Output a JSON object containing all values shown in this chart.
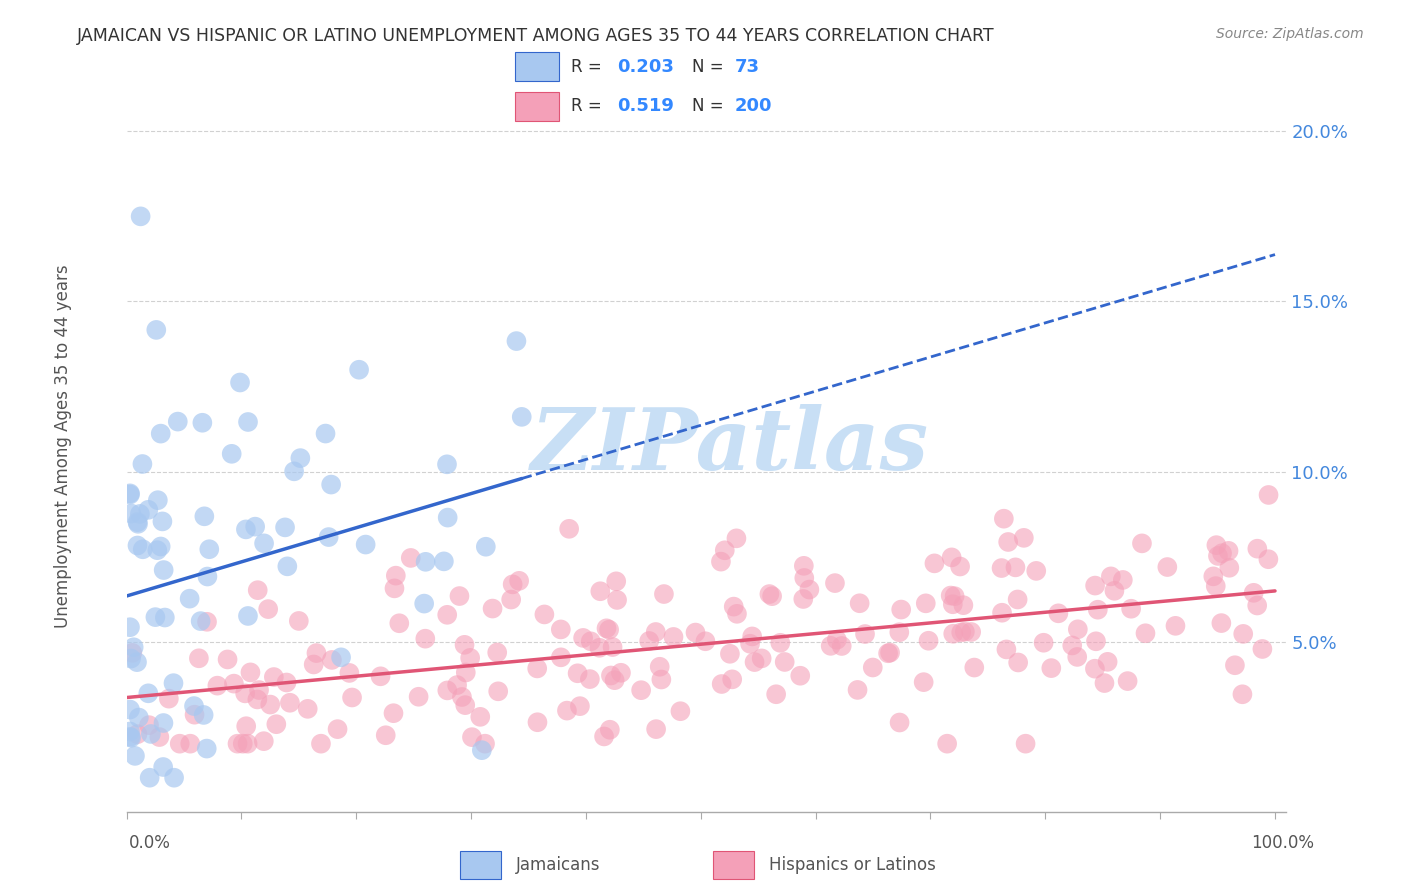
{
  "title": "JAMAICAN VS HISPANIC OR LATINO UNEMPLOYMENT AMONG AGES 35 TO 44 YEARS CORRELATION CHART",
  "source": "Source: ZipAtlas.com",
  "ylabel": "Unemployment Among Ages 35 to 44 years",
  "legend_jamaicans": "Jamaicans",
  "legend_hispanics": "Hispanics or Latinos",
  "r_jamaicans": "0.203",
  "n_jamaicans": "73",
  "r_hispanics": "0.519",
  "n_hispanics": "200",
  "jamaican_color": "#a8c8f0",
  "hispanic_color": "#f4a0b8",
  "jamaican_line_color": "#3366cc",
  "hispanic_line_color": "#e05575",
  "watermark_color": "#c8dff5",
  "ytick_color": "#4488dd",
  "background_color": "#ffffff",
  "grid_color": "#cccccc",
  "title_color": "#333333",
  "source_color": "#888888",
  "ylabel_color": "#555555",
  "legend_text_color": "#333333",
  "legend_value_color": "#3388ff",
  "bottom_legend_color": "#555555"
}
